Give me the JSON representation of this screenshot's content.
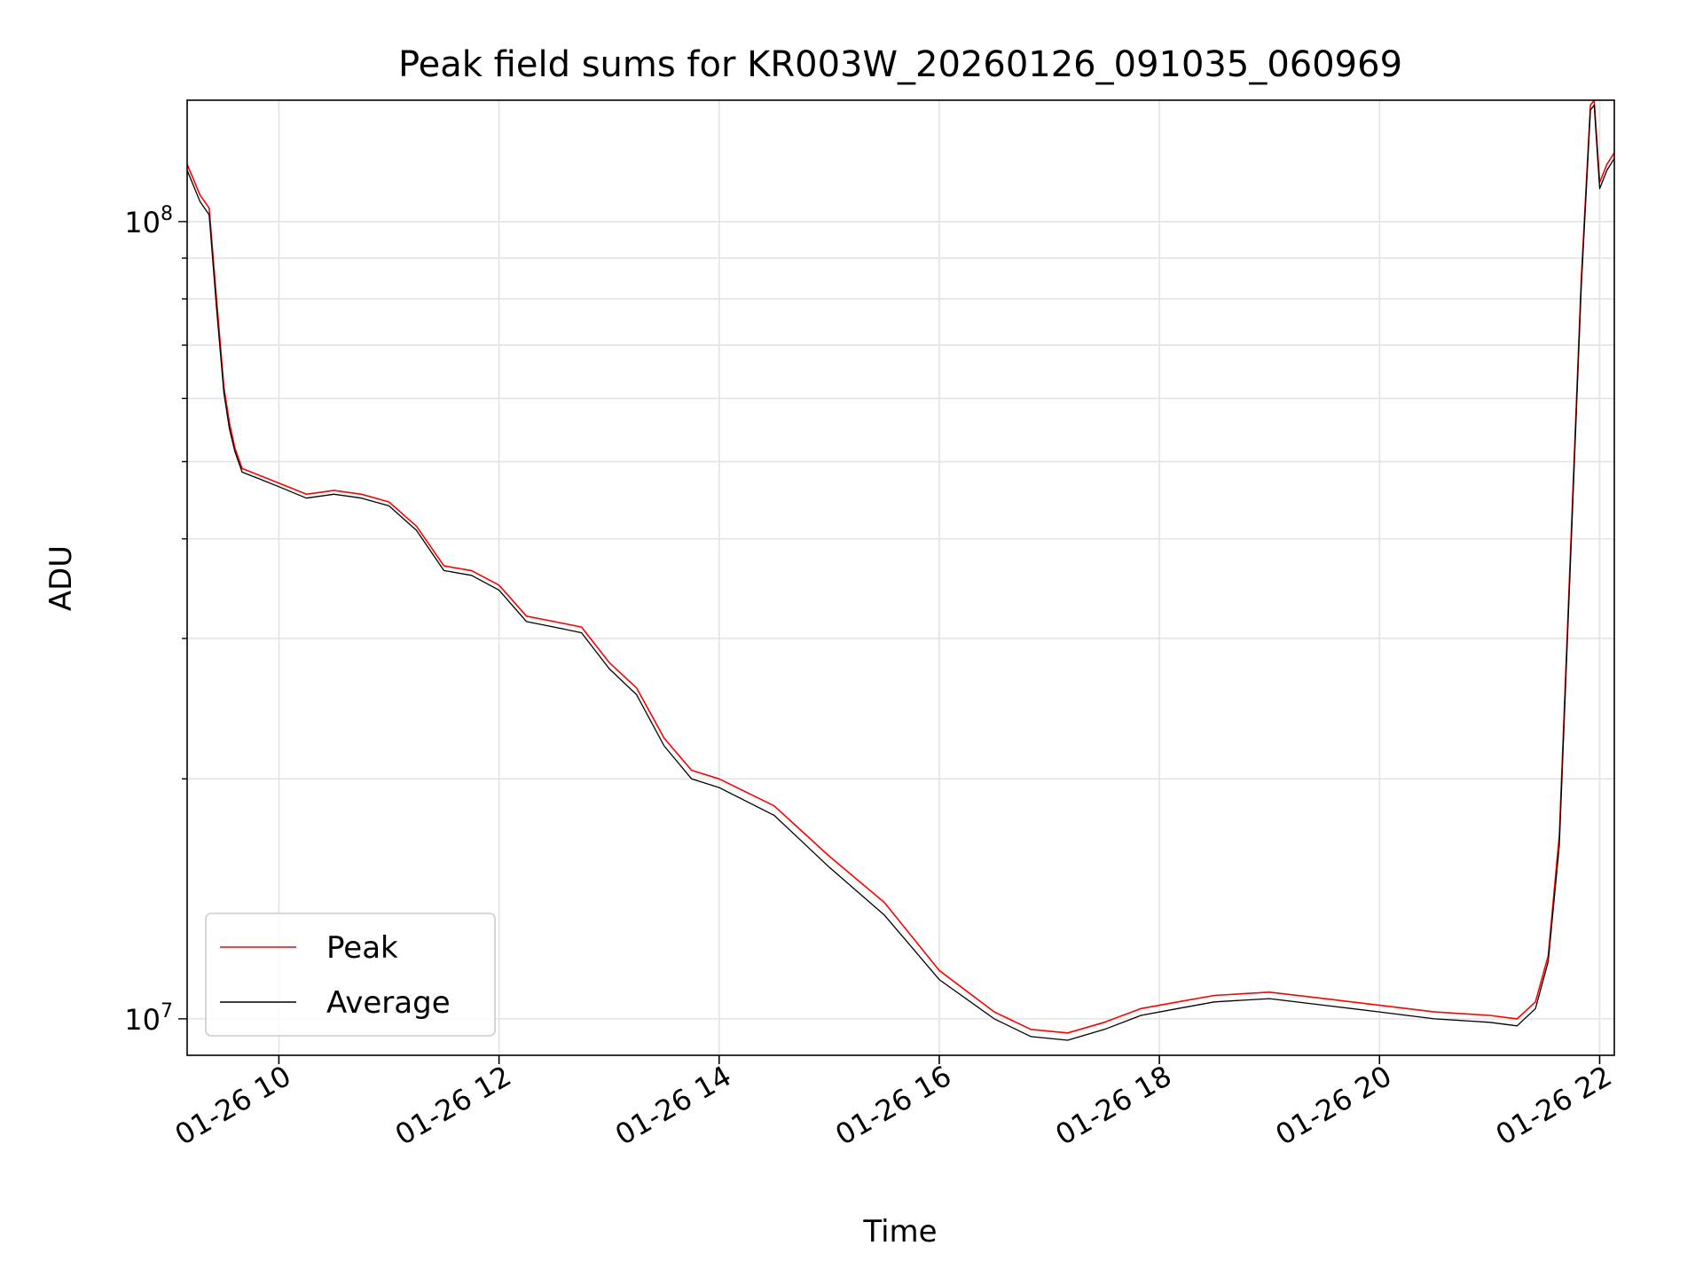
{
  "chart_data": {
    "type": "line",
    "title": "Peak field sums for KR003W_20260126_091035_060969",
    "xlabel": "Time",
    "ylabel": "ADU",
    "y_scale": "log",
    "xlim": [
      "2026-01-26 09:10",
      "2026-01-26 22:08"
    ],
    "ylim": [
      9000000,
      142000000
    ],
    "x_ticks": [
      "01-26 10",
      "01-26 12",
      "01-26 14",
      "01-26 16",
      "01-26 18",
      "01-26 20",
      "01-26 22"
    ],
    "y_ticks": [
      {
        "base": "10",
        "exp": "7"
      },
      {
        "base": "10",
        "exp": "8"
      }
    ],
    "grid": true,
    "legend": "lower-left",
    "series": [
      {
        "name": "Peak",
        "color": "#ff0000",
        "x": [
          "2026-01-26 09:10",
          "2026-01-26 09:17",
          "2026-01-26 09:22",
          "2026-01-26 09:26",
          "2026-01-26 09:30",
          "2026-01-26 09:33",
          "2026-01-26 09:36",
          "2026-01-26 09:40",
          "2026-01-26 09:45",
          "2026-01-26 09:50",
          "2026-01-26 10:00",
          "2026-01-26 10:15",
          "2026-01-26 10:30",
          "2026-01-26 10:45",
          "2026-01-26 11:00",
          "2026-01-26 11:15",
          "2026-01-26 11:30",
          "2026-01-26 11:45",
          "2026-01-26 12:00",
          "2026-01-26 12:15",
          "2026-01-26 12:30",
          "2026-01-26 12:45",
          "2026-01-26 13:00",
          "2026-01-26 13:15",
          "2026-01-26 13:30",
          "2026-01-26 13:45",
          "2026-01-26 14:00",
          "2026-01-26 14:30",
          "2026-01-26 15:00",
          "2026-01-26 15:30",
          "2026-01-26 16:00",
          "2026-01-26 16:30",
          "2026-01-26 16:50",
          "2026-01-26 17:10",
          "2026-01-26 17:30",
          "2026-01-26 17:50",
          "2026-01-26 18:10",
          "2026-01-26 18:30",
          "2026-01-26 19:00",
          "2026-01-26 19:30",
          "2026-01-26 20:00",
          "2026-01-26 20:30",
          "2026-01-26 21:00",
          "2026-01-26 21:15",
          "2026-01-26 21:25",
          "2026-01-26 21:32",
          "2026-01-26 21:38",
          "2026-01-26 21:44",
          "2026-01-26 21:50",
          "2026-01-26 21:55",
          "2026-01-26 21:57",
          "2026-01-26 22:00",
          "2026-01-26 22:04",
          "2026-01-26 22:08"
        ],
        "y": [
          118000000,
          108000000,
          104000000,
          80000000,
          62000000,
          56000000,
          52000000,
          49000000,
          48500000,
          48000000,
          47000000,
          45500000,
          46000000,
          45500000,
          44500000,
          41500000,
          37000000,
          36500000,
          35000000,
          32000000,
          31500000,
          31000000,
          28000000,
          26000000,
          22500000,
          20500000,
          20000000,
          18500000,
          16000000,
          14000000,
          11500000,
          10200000,
          9700000,
          9600000,
          9900000,
          10300000,
          10500000,
          10700000,
          10800000,
          10600000,
          10400000,
          10200000,
          10100000,
          10000000,
          10500000,
          12000000,
          17000000,
          38000000,
          85000000,
          140000000,
          142000000,
          112000000,
          118000000,
          122000000
        ]
      },
      {
        "name": "Average",
        "color": "#000000",
        "x": [
          "2026-01-26 09:10",
          "2026-01-26 09:17",
          "2026-01-26 09:22",
          "2026-01-26 09:26",
          "2026-01-26 09:30",
          "2026-01-26 09:33",
          "2026-01-26 09:36",
          "2026-01-26 09:40",
          "2026-01-26 09:45",
          "2026-01-26 09:50",
          "2026-01-26 10:00",
          "2026-01-26 10:15",
          "2026-01-26 10:30",
          "2026-01-26 10:45",
          "2026-01-26 11:00",
          "2026-01-26 11:15",
          "2026-01-26 11:30",
          "2026-01-26 11:45",
          "2026-01-26 12:00",
          "2026-01-26 12:15",
          "2026-01-26 12:30",
          "2026-01-26 12:45",
          "2026-01-26 13:00",
          "2026-01-26 13:15",
          "2026-01-26 13:30",
          "2026-01-26 13:45",
          "2026-01-26 14:00",
          "2026-01-26 14:30",
          "2026-01-26 15:00",
          "2026-01-26 15:30",
          "2026-01-26 16:00",
          "2026-01-26 16:30",
          "2026-01-26 16:50",
          "2026-01-26 17:10",
          "2026-01-26 17:30",
          "2026-01-26 17:50",
          "2026-01-26 18:10",
          "2026-01-26 18:30",
          "2026-01-26 19:00",
          "2026-01-26 19:30",
          "2026-01-26 20:00",
          "2026-01-26 20:30",
          "2026-01-26 21:00",
          "2026-01-26 21:15",
          "2026-01-26 21:25",
          "2026-01-26 21:32",
          "2026-01-26 21:38",
          "2026-01-26 21:44",
          "2026-01-26 21:50",
          "2026-01-26 21:55",
          "2026-01-26 21:57",
          "2026-01-26 22:00",
          "2026-01-26 22:04",
          "2026-01-26 22:08"
        ],
        "y": [
          116000000,
          106000000,
          102000000,
          78000000,
          61000000,
          55000000,
          51500000,
          48500000,
          48000000,
          47500000,
          46500000,
          45000000,
          45500000,
          45000000,
          44000000,
          41000000,
          36500000,
          36000000,
          34500000,
          31500000,
          31000000,
          30500000,
          27500000,
          25500000,
          22000000,
          20000000,
          19500000,
          18000000,
          15500000,
          13500000,
          11200000,
          10000000,
          9500000,
          9400000,
          9700000,
          10100000,
          10300000,
          10500000,
          10600000,
          10400000,
          10200000,
          10000000,
          9900000,
          9800000,
          10300000,
          11800000,
          16500000,
          37000000,
          83000000,
          138000000,
          140000000,
          110000000,
          116000000,
          120000000
        ]
      }
    ]
  }
}
